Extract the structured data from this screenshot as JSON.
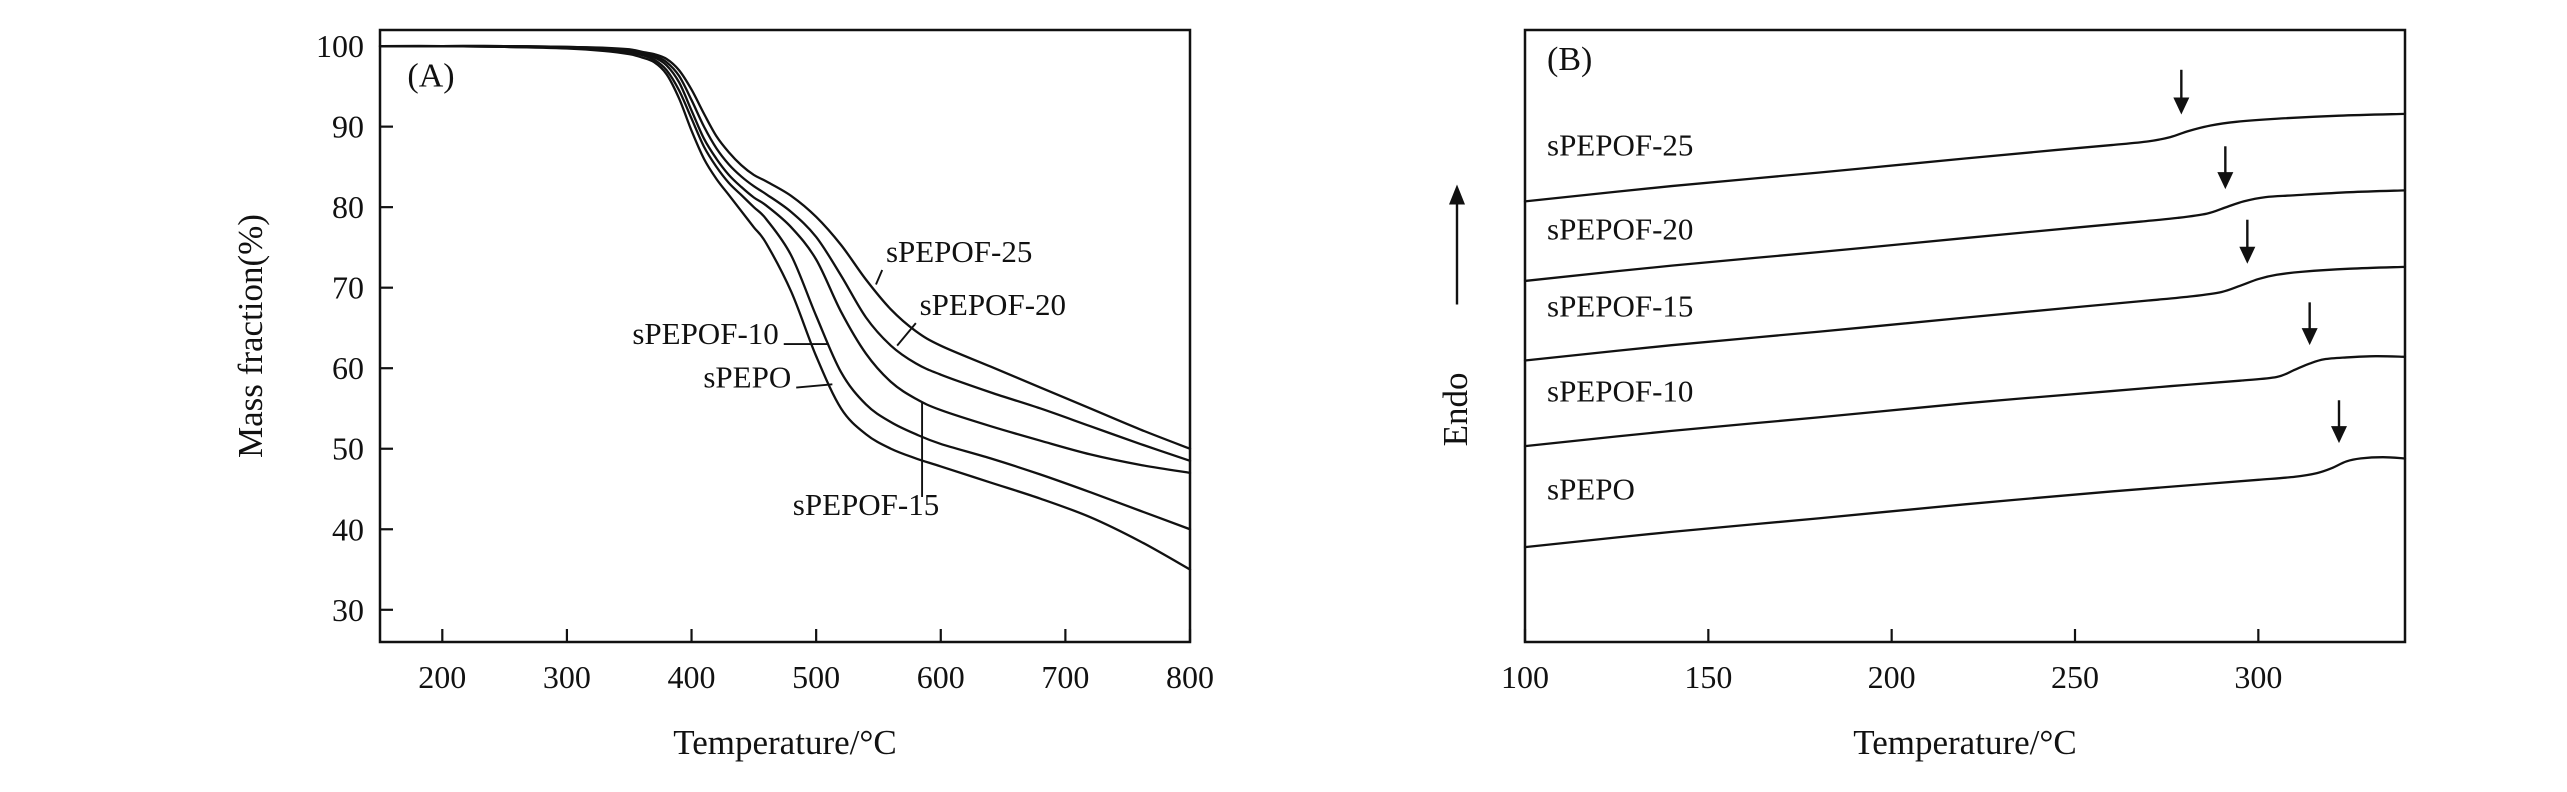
{
  "figure": {
    "background": "#ffffff",
    "line_color": "#111111"
  },
  "chart_data": [
    {
      "type": "line",
      "panel_label": "(A)",
      "panel_label_pos": {
        "x": 172,
        "y": 95.0
      },
      "xlabel": "Temperature/°C",
      "ylabel": "Mass fraction(%)",
      "xlim": [
        150,
        800
      ],
      "ylim": [
        26,
        102
      ],
      "xticks": [
        200,
        300,
        400,
        500,
        600,
        700,
        800
      ],
      "yticks": [
        30,
        40,
        50,
        60,
        70,
        80,
        90,
        100
      ],
      "grid": false,
      "series": [
        {
          "name": "sPEPO",
          "x": [
            150,
            200,
            250,
            300,
            330,
            350,
            360,
            370,
            380,
            390,
            400,
            410,
            420,
            430,
            440,
            450,
            460,
            480,
            500,
            520,
            540,
            560,
            580,
            600,
            640,
            680,
            720,
            760,
            800
          ],
          "y": [
            100,
            100,
            99.9,
            99.7,
            99.4,
            99,
            98.6,
            98,
            96.5,
            93.5,
            89.5,
            86,
            83.5,
            81.5,
            79.5,
            77.5,
            75.5,
            69.5,
            61.5,
            55,
            51.8,
            50,
            48.8,
            47.8,
            45.8,
            43.8,
            41.5,
            38.5,
            35
          ]
        },
        {
          "name": "sPEPOF-10",
          "x": [
            150,
            200,
            250,
            300,
            330,
            350,
            360,
            370,
            380,
            390,
            400,
            410,
            420,
            430,
            440,
            450,
            460,
            480,
            500,
            520,
            540,
            560,
            580,
            600,
            640,
            680,
            720,
            760,
            800
          ],
          "y": [
            100,
            100,
            99.9,
            99.8,
            99.5,
            99.2,
            98.9,
            98.3,
            97,
            94.5,
            91,
            87.5,
            85,
            83,
            81.5,
            80,
            78.5,
            74,
            66.5,
            59.5,
            55.5,
            53.3,
            51.8,
            50.6,
            48.8,
            46.8,
            44.6,
            42.3,
            40
          ]
        },
        {
          "name": "sPEPOF-15",
          "x": [
            150,
            200,
            250,
            300,
            330,
            350,
            360,
            370,
            380,
            390,
            400,
            410,
            420,
            430,
            440,
            450,
            460,
            480,
            500,
            520,
            540,
            560,
            580,
            600,
            640,
            680,
            720,
            760,
            800
          ],
          "y": [
            100,
            100,
            100,
            99.8,
            99.6,
            99.3,
            99,
            98.6,
            97.6,
            95.5,
            92,
            88.5,
            86,
            84,
            82.5,
            81.2,
            80.2,
            77.5,
            73.5,
            67,
            61.8,
            58.3,
            56.2,
            54.8,
            52.8,
            51,
            49.3,
            48,
            47
          ]
        },
        {
          "name": "sPEPOF-20",
          "x": [
            150,
            200,
            250,
            300,
            330,
            350,
            360,
            370,
            380,
            390,
            400,
            410,
            420,
            430,
            440,
            450,
            460,
            480,
            500,
            520,
            540,
            560,
            580,
            600,
            640,
            680,
            720,
            760,
            800
          ],
          "y": [
            100,
            100,
            100,
            99.9,
            99.7,
            99.4,
            99.1,
            98.8,
            98,
            96.3,
            93.3,
            90,
            87.3,
            85.3,
            83.8,
            82.6,
            81.6,
            79.4,
            76.3,
            71.5,
            66.3,
            62.8,
            60.6,
            59.2,
            57,
            55,
            52.8,
            50.6,
            48.5
          ]
        },
        {
          "name": "sPEPOF-25",
          "x": [
            150,
            200,
            250,
            300,
            330,
            350,
            360,
            370,
            380,
            390,
            400,
            410,
            420,
            430,
            440,
            450,
            460,
            480,
            500,
            520,
            540,
            560,
            580,
            600,
            640,
            680,
            720,
            760,
            800
          ],
          "y": [
            100,
            100,
            100,
            99.9,
            99.8,
            99.6,
            99.3,
            99,
            98.4,
            97,
            94.6,
            91.6,
            88.8,
            86.8,
            85.2,
            84,
            83.2,
            81.4,
            78.8,
            75.3,
            71,
            67.3,
            64.6,
            62.8,
            60.2,
            57.6,
            55,
            52.4,
            50
          ]
        }
      ],
      "annotations": [
        {
          "text": "sPEPOF-25",
          "x": 556,
          "y": 73.2,
          "anchor": "start",
          "leader": [
            [
              553,
              72.2
            ],
            [
              548,
              70.4
            ]
          ]
        },
        {
          "text": "sPEPOF-20",
          "x": 583,
          "y": 66.6,
          "anchor": "start",
          "leader": [
            [
              580,
              65.6
            ],
            [
              565,
              62.8
            ]
          ]
        },
        {
          "text": "sPEPOF-10",
          "x": 470,
          "y": 63.0,
          "anchor": "end",
          "leader": [
            [
              474,
              63.0
            ],
            [
              510,
              63.0
            ]
          ]
        },
        {
          "text": "sPEPO",
          "x": 480,
          "y": 57.6,
          "anchor": "end",
          "leader": [
            [
              484,
              57.6
            ],
            [
              513,
              58.0
            ]
          ]
        },
        {
          "text": "sPEPOF-15",
          "x": 540,
          "y": 41.8,
          "anchor": "middle",
          "leader": [
            [
              585,
              44.0
            ],
            [
              585,
              55.8
            ]
          ]
        }
      ]
    },
    {
      "type": "line",
      "panel_label": "(B)",
      "panel_label_pos": {
        "x": 106,
        "y": 9.35
      },
      "xlabel": "Temperature/°C",
      "ylabel": "Endo",
      "ylabel_arrow": true,
      "xlim": [
        100,
        340
      ],
      "ylim": [
        0,
        10
      ],
      "xticks": [
        100,
        150,
        200,
        250,
        300
      ],
      "yticks": [],
      "grid": false,
      "series": [
        {
          "name": "sPEPO",
          "x": [
            100,
            140,
            180,
            220,
            260,
            285,
            300,
            310,
            316,
            320,
            324,
            328,
            334,
            340
          ],
          "y": [
            1.55,
            1.8,
            2.02,
            2.25,
            2.46,
            2.58,
            2.65,
            2.7,
            2.76,
            2.84,
            2.95,
            3.0,
            3.02,
            3.0
          ]
        },
        {
          "name": "sPEPOF-10",
          "x": [
            100,
            140,
            180,
            220,
            260,
            280,
            295,
            305,
            310,
            314,
            318,
            324,
            332,
            340
          ],
          "y": [
            3.2,
            3.45,
            3.67,
            3.9,
            4.1,
            4.2,
            4.27,
            4.33,
            4.45,
            4.55,
            4.62,
            4.65,
            4.67,
            4.66
          ]
        },
        {
          "name": "sPEPOF-15",
          "x": [
            100,
            140,
            180,
            220,
            250,
            270,
            282,
            290,
            295,
            300,
            305,
            312,
            325,
            340
          ],
          "y": [
            4.6,
            4.85,
            5.07,
            5.3,
            5.47,
            5.58,
            5.65,
            5.72,
            5.82,
            5.93,
            6.0,
            6.05,
            6.1,
            6.13
          ]
        },
        {
          "name": "sPEPOF-20",
          "x": [
            100,
            140,
            180,
            220,
            250,
            268,
            278,
            286,
            291,
            296,
            302,
            310,
            325,
            340
          ],
          "y": [
            5.9,
            6.15,
            6.37,
            6.6,
            6.77,
            6.87,
            6.93,
            7.0,
            7.1,
            7.2,
            7.27,
            7.3,
            7.35,
            7.38
          ]
        },
        {
          "name": "sPEPOF-25",
          "x": [
            100,
            140,
            180,
            220,
            245,
            260,
            270,
            276,
            281,
            287,
            294,
            305,
            322,
            340
          ],
          "y": [
            7.2,
            7.45,
            7.67,
            7.9,
            8.04,
            8.12,
            8.18,
            8.25,
            8.35,
            8.44,
            8.5,
            8.55,
            8.6,
            8.63
          ]
        }
      ],
      "curve_labels": [
        {
          "text": "sPEPOF-25",
          "x": 106,
          "y": 7.95
        },
        {
          "text": "sPEPOF-20",
          "x": 106,
          "y": 6.58
        },
        {
          "text": "sPEPOF-15",
          "x": 106,
          "y": 5.32
        },
        {
          "text": "sPEPOF-10",
          "x": 106,
          "y": 3.93
        },
        {
          "text": "sPEPO",
          "x": 106,
          "y": 2.33
        }
      ],
      "arrows": [
        {
          "series": "sPEPOF-25",
          "x": 279,
          "y_tail": 9.35,
          "y_tip": 8.62
        },
        {
          "series": "sPEPOF-20",
          "x": 291,
          "y_tail": 8.1,
          "y_tip": 7.4
        },
        {
          "series": "sPEPOF-15",
          "x": 297,
          "y_tail": 6.9,
          "y_tip": 6.18
        },
        {
          "series": "sPEPOF-10",
          "x": 314,
          "y_tail": 5.55,
          "y_tip": 4.85
        },
        {
          "series": "sPEPO",
          "x": 322,
          "y_tail": 3.95,
          "y_tip": 3.25
        }
      ]
    }
  ]
}
